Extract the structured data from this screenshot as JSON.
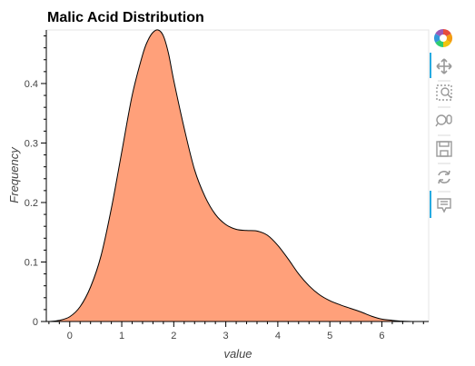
{
  "chart_data": {
    "type": "area",
    "title": "Malic Acid Distribution",
    "xlabel": "value",
    "ylabel": "Frequency",
    "xlim": [
      -0.45,
      6.9
    ],
    "ylim": [
      0,
      0.49
    ],
    "x_ticks": [
      0,
      1,
      2,
      3,
      4,
      5,
      6
    ],
    "y_ticks": [
      0,
      0.1,
      0.2,
      0.3,
      0.4
    ],
    "y_tick_labels": [
      "0",
      "0.1",
      "0.2",
      "0.3",
      "0.4"
    ],
    "grid": false,
    "legend": "none",
    "fill_color": "#FFA07A",
    "line_color": "#000000",
    "series": [
      {
        "x": [
          -0.4,
          -0.2,
          0.0,
          0.2,
          0.4,
          0.6,
          0.8,
          1.0,
          1.2,
          1.4,
          1.5,
          1.6,
          1.7,
          1.8,
          1.9,
          2.0,
          2.2,
          2.4,
          2.6,
          2.8,
          3.0,
          3.2,
          3.4,
          3.6,
          3.8,
          4.0,
          4.2,
          4.4,
          4.6,
          4.8,
          5.0,
          5.2,
          5.4,
          5.6,
          5.8,
          6.0,
          6.2,
          6.4,
          6.6
        ],
        "y": [
          0.0,
          0.002,
          0.008,
          0.025,
          0.058,
          0.11,
          0.19,
          0.285,
          0.38,
          0.448,
          0.472,
          0.486,
          0.49,
          0.48,
          0.45,
          0.405,
          0.325,
          0.255,
          0.21,
          0.18,
          0.163,
          0.155,
          0.153,
          0.152,
          0.145,
          0.128,
          0.105,
          0.08,
          0.06,
          0.045,
          0.035,
          0.028,
          0.022,
          0.016,
          0.009,
          0.004,
          0.002,
          0.0005,
          0.0
        ]
      }
    ]
  },
  "toolbar": {
    "tools": [
      {
        "name": "bokeh-logo-icon",
        "interactable": true
      },
      {
        "name": "pan-tool-icon",
        "interactable": true,
        "active": true
      },
      {
        "name": "box-zoom-tool-icon",
        "interactable": true
      },
      {
        "name": "wheel-zoom-tool-icon",
        "interactable": true
      },
      {
        "name": "save-tool-icon",
        "interactable": true
      },
      {
        "name": "reset-tool-icon",
        "interactable": true
      },
      {
        "name": "hover-tool-icon",
        "interactable": true,
        "active": true
      }
    ]
  }
}
